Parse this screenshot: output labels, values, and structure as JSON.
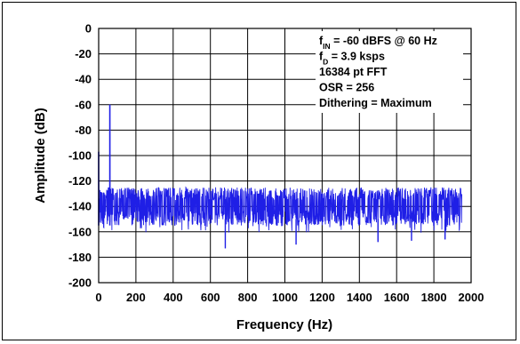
{
  "chart_data": {
    "type": "line",
    "title": "",
    "xlabel": "Frequency (Hz)",
    "ylabel": "Amplitude (dB)",
    "xlim": [
      0,
      2000
    ],
    "ylim": [
      -200,
      0
    ],
    "x_ticks": [
      0,
      200,
      400,
      600,
      800,
      1000,
      1200,
      1400,
      1600,
      1800,
      2000
    ],
    "y_ticks": [
      0,
      -20,
      -40,
      -60,
      -80,
      -100,
      -120,
      -140,
      -160,
      -180,
      -200
    ],
    "grid": true,
    "annotation_lines": [
      {
        "main": "f",
        "sub": "IN",
        "rest": " = -60 dBFS @ 60 Hz"
      },
      {
        "main": "f",
        "sub": "D",
        "rest": " = 3.9 ksps"
      },
      {
        "main": "16384 pt FFT",
        "sub": "",
        "rest": ""
      },
      {
        "main": "OSR = 256",
        "sub": "",
        "rest": ""
      },
      {
        "main": "Dithering = Maximum",
        "sub": "",
        "rest": ""
      }
    ],
    "series": [
      {
        "color": "#1f1fe6",
        "noise_floor_range": [
          -155,
          -125
        ],
        "frequency_range": [
          0,
          1950
        ],
        "peaks": [
          {
            "x": 0,
            "y": -97
          },
          {
            "x": 60,
            "y": -60
          }
        ],
        "deep_dips": [
          {
            "x": 680,
            "y": -173
          },
          {
            "x": 1060,
            "y": -170
          },
          {
            "x": 1500,
            "y": -168
          },
          {
            "x": 1680,
            "y": -167
          },
          {
            "x": 1860,
            "y": -166
          }
        ]
      }
    ]
  }
}
